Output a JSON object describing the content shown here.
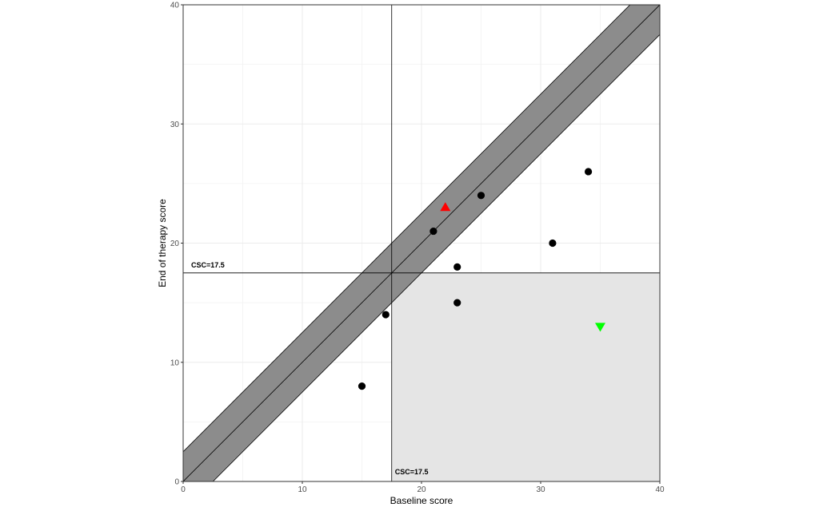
{
  "chart_data": {
    "type": "scatter",
    "title": "",
    "xlabel": "Baseline score",
    "ylabel": "End of therapy score",
    "xlim": [
      0,
      40
    ],
    "ylim": [
      0,
      40
    ],
    "x_ticks": [
      0,
      10,
      20,
      30,
      40
    ],
    "y_ticks": [
      0,
      10,
      20,
      30,
      40
    ],
    "grid": true,
    "cutoff": {
      "value": 17.5,
      "label_vertical": "CSC=17.5",
      "label_horizontal": "CSC=17.5"
    },
    "band": {
      "line": "y = x",
      "half_width": 2.5,
      "fill_color": "#8c8c8c"
    },
    "recovered_region": {
      "x_from": 17.5,
      "y_to": 17.5,
      "fill_color": "#e5e5e5"
    },
    "series": [
      {
        "marker": "circle",
        "color": "#000000",
        "points": [
          {
            "x": 15,
            "y": 8
          },
          {
            "x": 17,
            "y": 14
          },
          {
            "x": 21,
            "y": 21
          },
          {
            "x": 23,
            "y": 18
          },
          {
            "x": 23,
            "y": 15
          },
          {
            "x": 25,
            "y": 24
          },
          {
            "x": 31,
            "y": 20
          },
          {
            "x": 34,
            "y": 26
          }
        ]
      },
      {
        "marker": "triangle-up",
        "color": "#ff0000",
        "points": [
          {
            "x": 22,
            "y": 23
          }
        ]
      },
      {
        "marker": "triangle-down",
        "color": "#00ff00",
        "points": [
          {
            "x": 35,
            "y": 13
          }
        ]
      }
    ]
  }
}
